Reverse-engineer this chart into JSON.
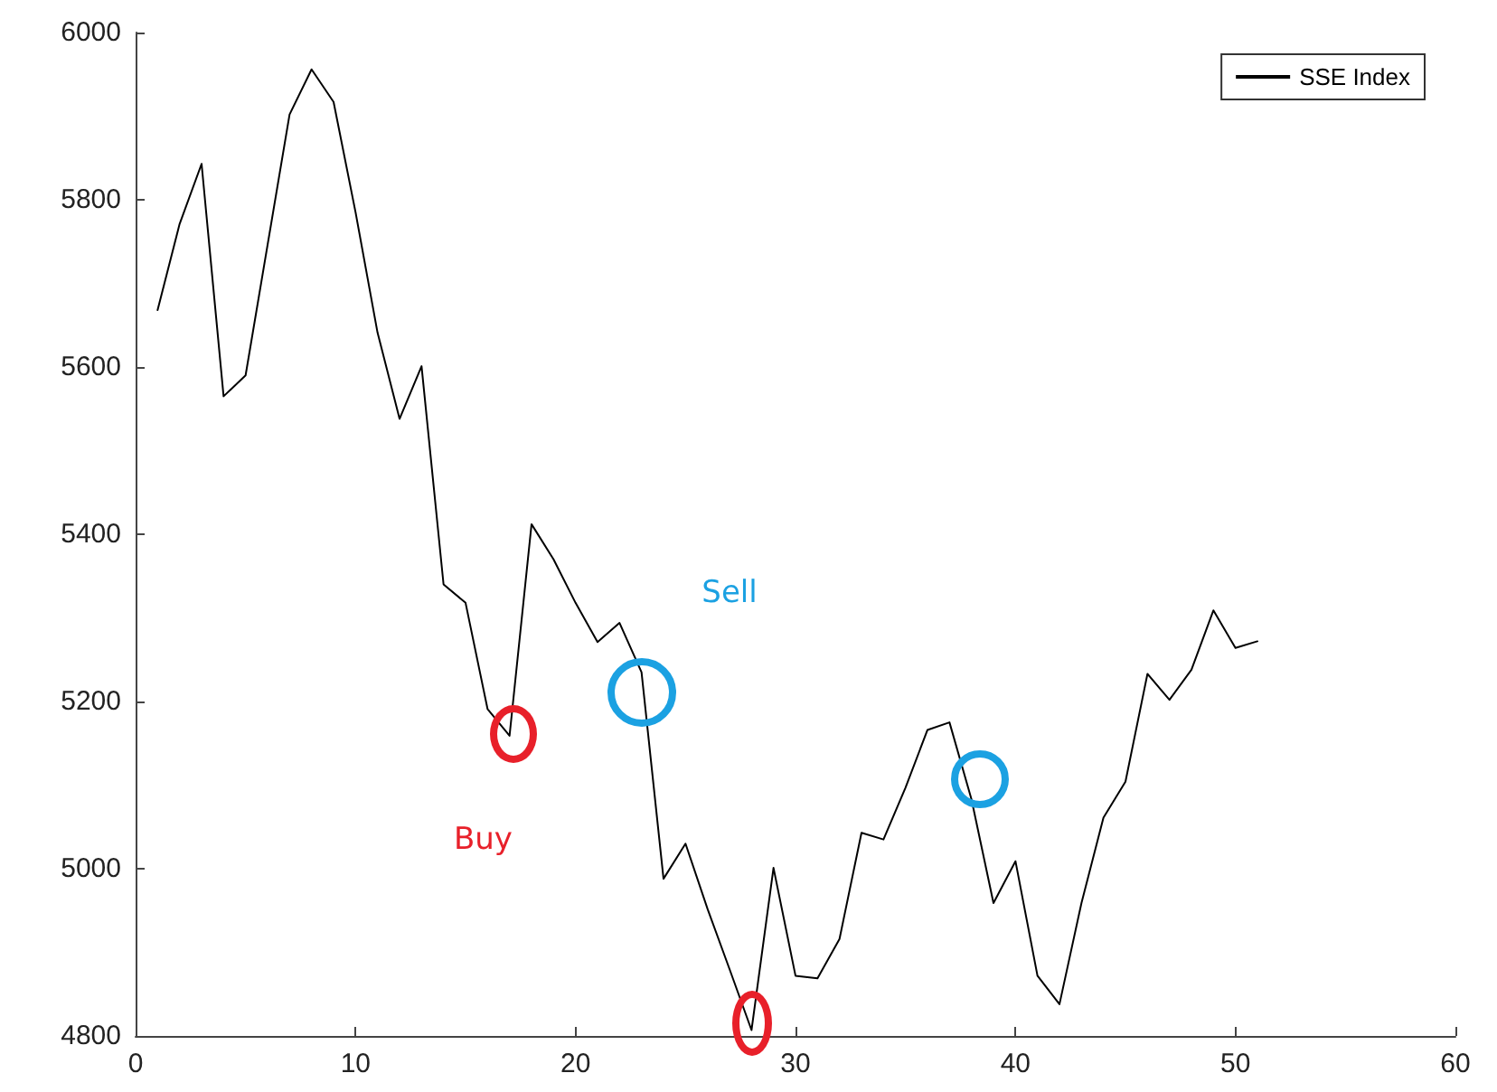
{
  "chart_data": {
    "type": "line",
    "x": [
      1,
      2,
      3,
      4,
      5,
      6,
      7,
      8,
      9,
      10,
      11,
      12,
      13,
      14,
      15,
      16,
      17,
      18,
      19,
      20,
      21,
      22,
      23,
      24,
      25,
      26,
      27,
      28,
      29,
      30,
      31,
      32,
      33,
      34,
      35,
      36,
      37,
      38,
      39,
      40,
      41,
      42,
      43,
      44,
      45,
      46,
      47,
      48,
      49,
      50,
      51
    ],
    "series": [
      {
        "name": "SSE Index",
        "color": "#000000",
        "values": [
          5668,
          5771,
          5843,
          5565,
          5590,
          5746,
          5902,
          5956,
          5917,
          5785,
          5641,
          5538,
          5601,
          5340,
          5318,
          5191,
          5159,
          5412,
          5370,
          5318,
          5271,
          5294,
          5235,
          4988,
          5030,
          4952,
          4880,
          4807,
          5001,
          4872,
          4869,
          4916,
          5043,
          5035,
          5097,
          5166,
          5175,
          5083,
          4959,
          5009,
          4872,
          4838,
          4959,
          5061,
          5104,
          5233,
          5202,
          5238,
          5309,
          5264,
          5272
        ]
      }
    ],
    "xlim": [
      0,
      60
    ],
    "xticks": [
      0,
      10,
      20,
      30,
      40,
      50,
      60
    ],
    "ylim": [
      4800,
      6000
    ],
    "yticks": [
      4800,
      5000,
      5200,
      5400,
      5600,
      5800,
      6000
    ],
    "grid": false,
    "legend": "top right",
    "marker": "none",
    "line_style": "solid",
    "annotations": [
      "Buy",
      "Sell"
    ]
  }
}
